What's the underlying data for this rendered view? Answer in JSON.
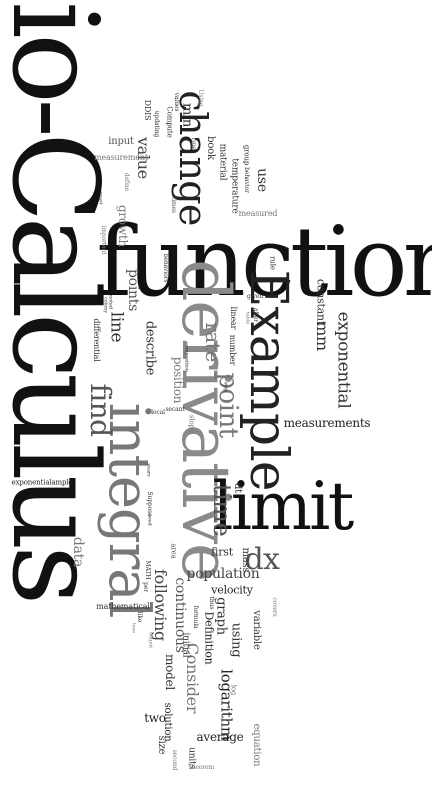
{
  "palette": {
    "dark": "#111111",
    "mid": "#444444",
    "gray": "#777777",
    "light": "#a6a6a6"
  },
  "words": {
    "bio_calculus": "Bio-Calculus",
    "function": "function",
    "derivative": "derivative",
    "example": "Example",
    "limit": "limit",
    "integral": "integral",
    "change": "change",
    "find": "find",
    "point": "point",
    "time": "time",
    "dx": "dx",
    "rate": "rate",
    "exponential": "exponential",
    "measurements": "measurements",
    "mm": "mm",
    "constant": "constant",
    "line": "line",
    "points": "points",
    "describe": "describe",
    "position": "position",
    "linear": "linear",
    "number": "number",
    "slope": "slope",
    "data": "data",
    "population": "population",
    "first": "first",
    "mass": "mass",
    "velocity": "velocity",
    "following": "following",
    "continuous": "continuous",
    "consider": "Consider",
    "definition": "Definition",
    "model": "model",
    "graph": "graph",
    "using": "using",
    "variable": "variable",
    "logarithm": "logarithm",
    "average": "average",
    "solution": "solution",
    "two": "two",
    "value": "value",
    "book": "book",
    "material": "material",
    "temperature": "temperature",
    "use": "use",
    "min": "min",
    "input": "input",
    "measurement": "measurement",
    "growth": "growth",
    "mathematical": "mathematical",
    "differential": "differential",
    "size": "size",
    "units": "units",
    "dt": "dt",
    "exponentialample": "exponentialample",
    "measured": "measured",
    "compute": "Compute",
    "updating": "updating",
    "group": "group",
    "behavior": "behavior",
    "important": "important",
    "colony": "colony",
    "local": "local",
    "secant": "secant",
    "given": "given",
    "rule": "rule",
    "table": "table",
    "after": "after",
    "times": "times",
    "second": "second",
    "equation": "equation",
    "theorem": "Theorem",
    "log": "log",
    "initial": "initial",
    "formula": "formula",
    "covers": "covers",
    "thus": "thus",
    "area": "area",
    "per": "per",
    "math": "MATH",
    "suppose": "Suppose",
    "seed": "seed",
    "years": "years",
    "like": "like",
    "output": "output",
    "ndis": "DDIS",
    "one": "one",
    "values": "values",
    "define": "define",
    "behaviors": "behaviors",
    "composition": "composition",
    "step": "step",
    "yeast": "yeast",
    "noted": "noted",
    "using2": "Using",
    "line2": "line",
    "tree": "tree"
  }
}
